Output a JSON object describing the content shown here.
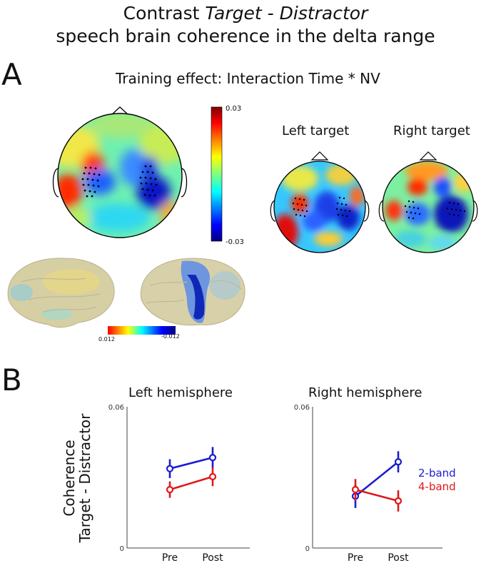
{
  "title": {
    "line1_prefix": "Contrast ",
    "line1_italic": "Target - Distractor",
    "line2": "speech brain coherence in the delta range"
  },
  "panel_a": {
    "letter": "A",
    "heading": "Training effect: Interaction Time * NV",
    "colorbar": {
      "max_label": "0.03",
      "min_label": "-0.03"
    },
    "left_target_label": "Left target",
    "right_target_label": "Right target",
    "brain_colorbar": {
      "left_label": "0.012",
      "right_label": "-0.012"
    }
  },
  "panel_b": {
    "letter": "B"
  },
  "colors": {
    "series_2band": "#1c1ccf",
    "series_4band": "#e01818"
  },
  "chart_data": [
    {
      "type": "line",
      "title": "Left hemisphere",
      "ylabel_line1": "Coherence",
      "ylabel_line2": "Target - Distractor",
      "categories": [
        "Pre",
        "Post"
      ],
      "ylim": [
        0,
        0.06
      ],
      "yticks": [
        "0",
        "0.06"
      ],
      "series": [
        {
          "name": "2-band",
          "color": "#1c1ccf",
          "values": [
            0.0337,
            0.0384
          ],
          "err": [
            0.004,
            0.0045
          ]
        },
        {
          "name": "4-band",
          "color": "#e01818",
          "values": [
            0.0248,
            0.0303
          ],
          "err": [
            0.0035,
            0.004
          ]
        }
      ]
    },
    {
      "type": "line",
      "title": "Right hemisphere",
      "categories": [
        "Pre",
        "Post"
      ],
      "ylim": [
        0,
        0.06
      ],
      "yticks": [
        "0",
        "0.06"
      ],
      "series": [
        {
          "name": "2-band",
          "color": "#1c1ccf",
          "values": [
            0.022,
            0.0366
          ],
          "err": [
            0.005,
            0.0045
          ]
        },
        {
          "name": "4-band",
          "color": "#e01818",
          "values": [
            0.0248,
            0.02
          ],
          "err": [
            0.0045,
            0.0045
          ]
        }
      ]
    }
  ]
}
